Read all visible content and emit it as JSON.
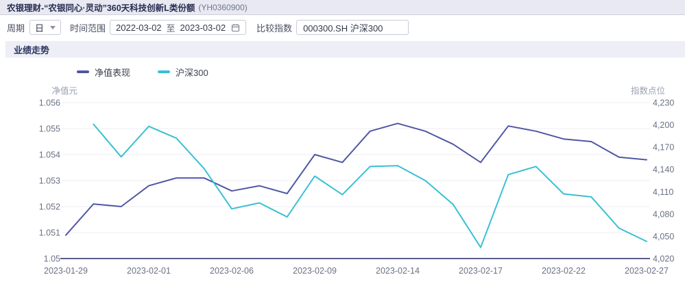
{
  "header": {
    "title": "农银理财-“农银同心·灵动”360天科技创新L类份额",
    "code": "(YH0360900)"
  },
  "toolbar": {
    "period_label": "周期",
    "period_value": "日",
    "range_label": "时间范围",
    "range_start": "2022-03-02",
    "range_separator": "至",
    "range_end": "2023-03-02",
    "compare_label": "比较指数",
    "compare_value": "000300.SH 沪深300"
  },
  "section": {
    "title": "业绩走势"
  },
  "legend": [
    {
      "label": "净值表现",
      "color": "#4e57a2"
    },
    {
      "label": "沪深300",
      "color": "#38c0d3"
    }
  ],
  "chart_data": {
    "type": "line",
    "title": "业绩走势",
    "x": [
      "2023-01-29",
      "2023-01-30",
      "2023-01-31",
      "2023-02-01",
      "2023-02-02",
      "2023-02-03",
      "2023-02-06",
      "2023-02-07",
      "2023-02-08",
      "2023-02-09",
      "2023-02-10",
      "2023-02-13",
      "2023-02-14",
      "2023-02-15",
      "2023-02-16",
      "2023-02-17",
      "2023-02-20",
      "2023-02-21",
      "2023-02-22",
      "2023-02-23",
      "2023-02-24",
      "2023-02-27"
    ],
    "x_tick_indices": [
      0,
      3,
      6,
      9,
      12,
      15,
      18,
      21
    ],
    "series": [
      {
        "name": "净值表现",
        "axis": "left",
        "color": "#4e57a2",
        "values": [
          1.0509,
          1.0521,
          1.052,
          1.0528,
          1.0531,
          1.0531,
          1.0526,
          1.0528,
          1.0525,
          1.054,
          1.0537,
          1.0549,
          1.0552,
          1.0549,
          1.0544,
          1.0537,
          1.0551,
          1.0549,
          1.0546,
          1.0545,
          1.0539,
          1.0538
        ]
      },
      {
        "name": "沪深300",
        "axis": "right",
        "color": "#38c0d3",
        "values": [
          null,
          4201,
          4157,
          4198,
          4182,
          4141,
          4087,
          4095,
          4076,
          4131,
          4106,
          4144,
          4145,
          4125,
          4093,
          4035,
          4133,
          4144,
          4107,
          4103,
          4061,
          4043
        ]
      }
    ],
    "left_axis": {
      "title": "净值元",
      "min": 1.05,
      "max": 1.056,
      "ticks": [
        "1.056",
        "1.055",
        "1.054",
        "1.053",
        "1.052",
        "1.051",
        "1.05"
      ]
    },
    "right_axis": {
      "title": "指数点位",
      "min": 4020,
      "max": 4230,
      "ticks": [
        "4,230",
        "4,200",
        "4,170",
        "4,140",
        "4,110",
        "4,080",
        "4,050",
        "4,020"
      ]
    },
    "grid": true,
    "legend_position": "top-left"
  },
  "colors": {
    "grid_line": "#ededf4",
    "axis_line": "#575c8a",
    "tick_text": "#6b7185",
    "axis_title_text": "#9aa0b3"
  }
}
